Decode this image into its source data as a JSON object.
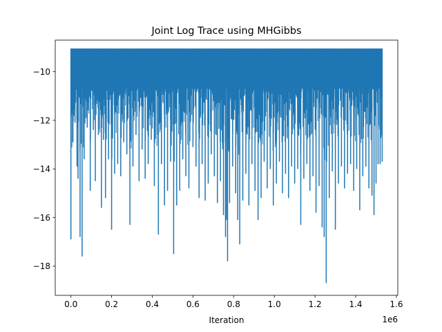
{
  "chart_data": {
    "type": "line",
    "title": "Joint Log Trace using MHGibbs",
    "xlabel": "Iteration",
    "ylabel": "",
    "x_offset_label": "1e6",
    "xlim": [
      -0.077,
      1.607
    ],
    "ylim": [
      -19.2,
      -8.7
    ],
    "x_ticks": [
      0.0,
      0.2,
      0.4,
      0.6,
      0.8,
      1.0,
      1.2,
      1.4,
      1.6
    ],
    "x_tick_labels": [
      "0.0",
      "0.2",
      "0.4",
      "0.6",
      "0.8",
      "1.0",
      "1.2",
      "1.4",
      "1.6"
    ],
    "y_ticks": [
      -18,
      -16,
      -14,
      -12,
      -10
    ],
    "y_tick_labels": [
      "−18",
      "−16",
      "−14",
      "−12",
      "−10"
    ],
    "grid": false,
    "series": [
      {
        "color": "#1f77b4",
        "x_range": [
          0.0,
          1.53
        ],
        "upper_bound": -9.05,
        "dense_band": [
          -9.05,
          -10.7
        ],
        "lower_envelope": [
          [
            0.0,
            -16.9
          ],
          [
            0.01,
            -12.9
          ],
          [
            0.02,
            -12.1
          ],
          [
            0.03,
            -13.9
          ],
          [
            0.035,
            -14.4
          ],
          [
            0.045,
            -16.8
          ],
          [
            0.055,
            -17.6
          ],
          [
            0.065,
            -13.6
          ],
          [
            0.08,
            -12.3
          ],
          [
            0.095,
            -14.9
          ],
          [
            0.11,
            -12.4
          ],
          [
            0.12,
            -14.5
          ],
          [
            0.135,
            -12.6
          ],
          [
            0.15,
            -15.6
          ],
          [
            0.16,
            -12.8
          ],
          [
            0.17,
            -15.2
          ],
          [
            0.185,
            -13.6
          ],
          [
            0.2,
            -16.5
          ],
          [
            0.215,
            -14.2
          ],
          [
            0.23,
            -13.8
          ],
          [
            0.245,
            -14.3
          ],
          [
            0.26,
            -12.9
          ],
          [
            0.275,
            -13.4
          ],
          [
            0.29,
            -16.3
          ],
          [
            0.305,
            -13.9
          ],
          [
            0.32,
            -12.6
          ],
          [
            0.335,
            -14.5
          ],
          [
            0.35,
            -13.2
          ],
          [
            0.365,
            -14.4
          ],
          [
            0.38,
            -13.8
          ],
          [
            0.395,
            -12.8
          ],
          [
            0.41,
            -14.7
          ],
          [
            0.43,
            -16.7
          ],
          [
            0.445,
            -13.8
          ],
          [
            0.46,
            -15.5
          ],
          [
            0.475,
            -14.9
          ],
          [
            0.49,
            -13.7
          ],
          [
            0.505,
            -17.5
          ],
          [
            0.52,
            -15.5
          ],
          [
            0.535,
            -14.9
          ],
          [
            0.55,
            -13.6
          ],
          [
            0.565,
            -14.3
          ],
          [
            0.58,
            -14.8
          ],
          [
            0.6,
            -13.1
          ],
          [
            0.615,
            -13.9
          ],
          [
            0.63,
            -15.2
          ],
          [
            0.645,
            -13.8
          ],
          [
            0.66,
            -15.3
          ],
          [
            0.675,
            -14.6
          ],
          [
            0.69,
            -13.4
          ],
          [
            0.705,
            -14.3
          ],
          [
            0.72,
            -15.4
          ],
          [
            0.735,
            -14.5
          ],
          [
            0.75,
            -15.9
          ],
          [
            0.76,
            -16.8
          ],
          [
            0.765,
            -16.1
          ],
          [
            0.77,
            -17.8
          ],
          [
            0.78,
            -15.4
          ],
          [
            0.795,
            -13.9
          ],
          [
            0.81,
            -15.0
          ],
          [
            0.82,
            -16.1
          ],
          [
            0.83,
            -17.1
          ],
          [
            0.845,
            -15.3
          ],
          [
            0.86,
            -14.2
          ],
          [
            0.875,
            -15.5
          ],
          [
            0.89,
            -13.8
          ],
          [
            0.905,
            -14.9
          ],
          [
            0.92,
            -16.1
          ],
          [
            0.935,
            -15.2
          ],
          [
            0.95,
            -13.7
          ],
          [
            0.965,
            -14.8
          ],
          [
            0.98,
            -14.0
          ],
          [
            0.995,
            -15.5
          ],
          [
            1.01,
            -14.6
          ],
          [
            1.025,
            -13.7
          ],
          [
            1.04,
            -15.0
          ],
          [
            1.055,
            -14.2
          ],
          [
            1.07,
            -15.2
          ],
          [
            1.085,
            -13.9
          ],
          [
            1.1,
            -14.6
          ],
          [
            1.115,
            -14.0
          ],
          [
            1.13,
            -16.3
          ],
          [
            1.145,
            -14.4
          ],
          [
            1.16,
            -13.8
          ],
          [
            1.175,
            -14.9
          ],
          [
            1.19,
            -14.3
          ],
          [
            1.205,
            -15.8
          ],
          [
            1.22,
            -14.7
          ],
          [
            1.235,
            -16.4
          ],
          [
            1.245,
            -16.8
          ],
          [
            1.255,
            -18.7
          ],
          [
            1.27,
            -15.2
          ],
          [
            1.285,
            -14.1
          ],
          [
            1.3,
            -16.5
          ],
          [
            1.315,
            -14.6
          ],
          [
            1.33,
            -13.9
          ],
          [
            1.345,
            -14.8
          ],
          [
            1.36,
            -14.2
          ],
          [
            1.375,
            -13.8
          ],
          [
            1.39,
            -14.9
          ],
          [
            1.405,
            -14.0
          ],
          [
            1.42,
            -15.7
          ],
          [
            1.435,
            -14.3
          ],
          [
            1.45,
            -13.9
          ],
          [
            1.465,
            -14.8
          ],
          [
            1.48,
            -15.1
          ],
          [
            1.49,
            -15.9
          ],
          [
            1.5,
            -14.6
          ],
          [
            1.51,
            -13.8
          ],
          [
            1.52,
            -13.8
          ],
          [
            1.53,
            -13.7
          ]
        ]
      }
    ]
  }
}
